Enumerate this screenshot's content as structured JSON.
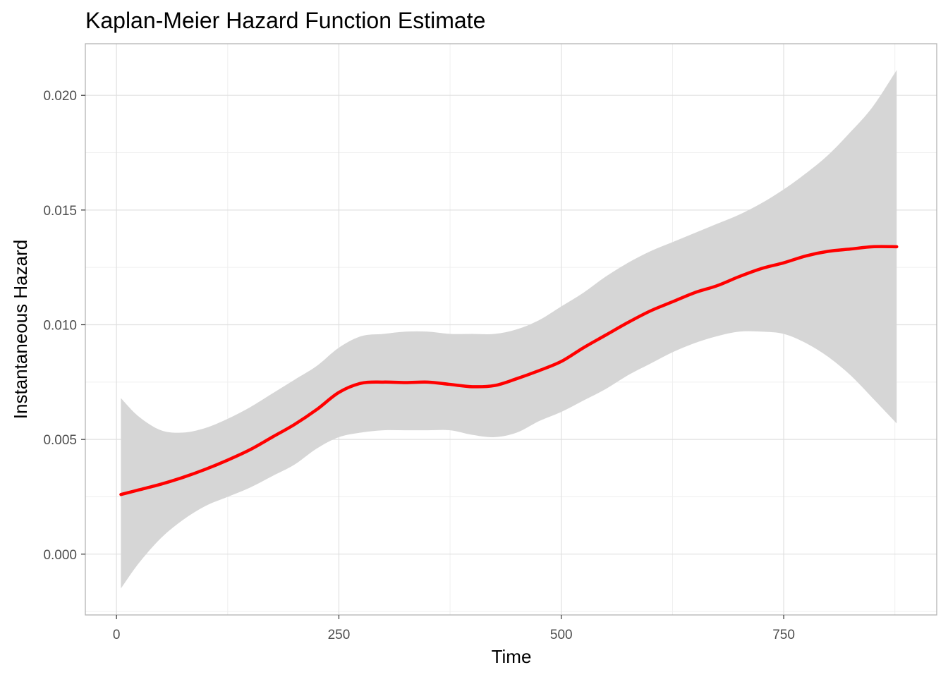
{
  "chart_data": {
    "type": "line",
    "title": "Kaplan-Meier Hazard Function Estimate",
    "xlabel": "Time",
    "ylabel": "Instantaneous Hazard",
    "xlim": [
      -35,
      922
    ],
    "ylim": [
      -0.00265,
      0.02225
    ],
    "x_ticks": [
      0,
      250,
      500,
      750
    ],
    "x_tick_labels": [
      "0",
      "250",
      "500",
      "750"
    ],
    "y_ticks": [
      0.0,
      0.005,
      0.01,
      0.015,
      0.02
    ],
    "y_tick_labels": [
      "0.000",
      "0.005",
      "0.010",
      "0.015",
      "0.020"
    ],
    "x_minor_ticks": [
      125,
      375,
      625,
      875
    ],
    "y_minor_ticks": [
      -0.0025,
      0.0025,
      0.0075,
      0.0125,
      0.0175
    ],
    "grid": true,
    "legend": "none",
    "colors": {
      "line": "#ff0000",
      "ribbon": "#d6d6d6",
      "grid_major": "#e0e0e0",
      "grid_minor": "#efefef",
      "panel_border": "#b3b3b3"
    },
    "series": [
      {
        "x": [
          5,
          25,
          50,
          75,
          100,
          125,
          150,
          175,
          200,
          225,
          250,
          275,
          300,
          325,
          350,
          375,
          400,
          425,
          450,
          475,
          500,
          525,
          550,
          575,
          600,
          625,
          650,
          675,
          700,
          725,
          750,
          775,
          800,
          825,
          850,
          877
        ],
        "y": [
          0.0026,
          0.0028,
          0.00305,
          0.00335,
          0.0037,
          0.0041,
          0.00455,
          0.0051,
          0.00565,
          0.0063,
          0.00705,
          0.00745,
          0.0075,
          0.00748,
          0.0075,
          0.0074,
          0.0073,
          0.00735,
          0.00765,
          0.008,
          0.0084,
          0.009,
          0.00955,
          0.0101,
          0.0106,
          0.011,
          0.0114,
          0.0117,
          0.0121,
          0.01245,
          0.0127,
          0.013,
          0.0132,
          0.0133,
          0.0134,
          0.0134
        ],
        "lower": [
          -0.0015,
          -0.0004,
          0.0007,
          0.0015,
          0.0021,
          0.0025,
          0.0029,
          0.0034,
          0.0039,
          0.0046,
          0.0051,
          0.0053,
          0.0054,
          0.0054,
          0.0054,
          0.0054,
          0.0052,
          0.0051,
          0.0053,
          0.0058,
          0.0062,
          0.0067,
          0.0072,
          0.0078,
          0.0083,
          0.0088,
          0.0092,
          0.0095,
          0.0097,
          0.0097,
          0.0096,
          0.0092,
          0.0086,
          0.0078,
          0.0068,
          0.0057
        ],
        "upper": [
          0.0068,
          0.006,
          0.0054,
          0.0053,
          0.0055,
          0.0059,
          0.0064,
          0.007,
          0.0076,
          0.0082,
          0.009,
          0.0095,
          0.0096,
          0.0097,
          0.0097,
          0.0096,
          0.0096,
          0.0096,
          0.0098,
          0.0102,
          0.0108,
          0.0114,
          0.0121,
          0.0127,
          0.0132,
          0.0136,
          0.014,
          0.0144,
          0.0148,
          0.0153,
          0.0159,
          0.0166,
          0.0174,
          0.0184,
          0.0195,
          0.0211
        ]
      }
    ]
  }
}
